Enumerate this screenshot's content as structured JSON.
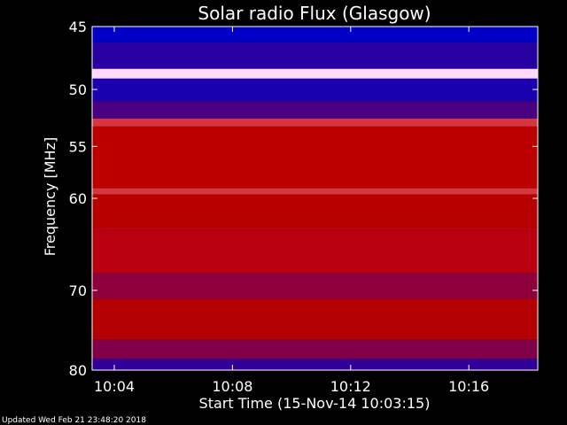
{
  "chart_data": {
    "type": "heatmap",
    "title": "Solar radio Flux (Glasgow)",
    "xlabel": "Start Time (15-Nov-14 10:03:15)",
    "ylabel": "Frequency [MHz]",
    "x_range": [
      "10:03:15",
      "10:18:20"
    ],
    "x_ticks": [
      "10:04",
      "10:08",
      "10:12",
      "10:16"
    ],
    "ylim": [
      45,
      80
    ],
    "y_scale": "log",
    "y_ticks": [
      45,
      50,
      55,
      60,
      70,
      80
    ],
    "colors": {
      "background": "#000000",
      "low": "#0000c8",
      "mid": "#c80000",
      "high": "#ffffff"
    },
    "bands": [
      {
        "from": 45,
        "to": 46.2,
        "level": 0.05
      },
      {
        "from": 46.2,
        "to": 48.3,
        "level": 0.22
      },
      {
        "from": 48.3,
        "to": 49.1,
        "level": 1.0
      },
      {
        "from": 49.1,
        "to": 51.0,
        "level": 0.18
      },
      {
        "from": 51.0,
        "to": 52.5,
        "level": 0.3
      },
      {
        "from": 52.5,
        "to": 53.2,
        "level": 0.85
      },
      {
        "from": 53.2,
        "to": 59.0,
        "level": 0.68
      },
      {
        "from": 59.0,
        "to": 59.6,
        "level": 0.85
      },
      {
        "from": 59.6,
        "to": 63.0,
        "level": 0.62
      },
      {
        "from": 63.0,
        "to": 68.0,
        "level": 0.48
      },
      {
        "from": 68.0,
        "to": 71.0,
        "level": 0.42
      },
      {
        "from": 71.0,
        "to": 76.0,
        "level": 0.6
      },
      {
        "from": 76.0,
        "to": 78.5,
        "level": 0.4
      },
      {
        "from": 78.5,
        "to": 80.0,
        "level": 0.25
      }
    ]
  },
  "footer": {
    "updated": "Updated Wed Feb 21 23:48:20 2018"
  }
}
